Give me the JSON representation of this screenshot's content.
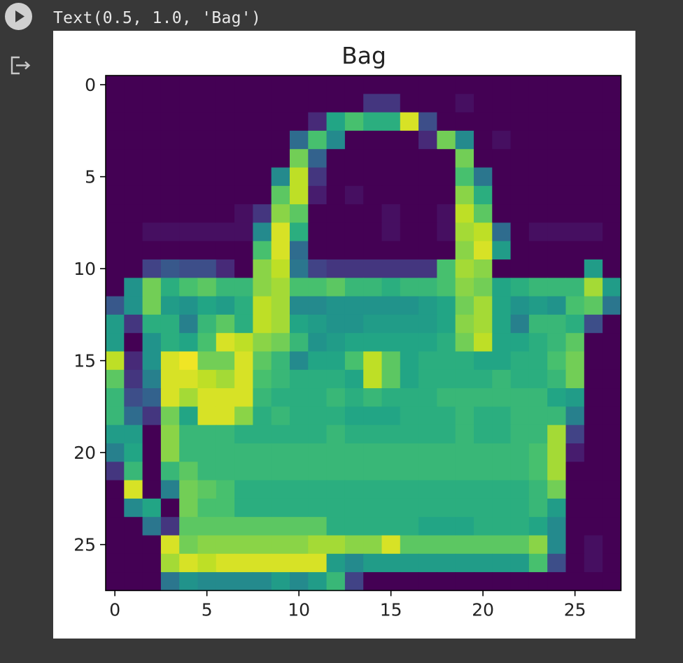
{
  "cell": {
    "output_text": "Text(0.5, 1.0, 'Bag')",
    "run_icon": "play-icon",
    "output_icon": "output-exit-icon"
  },
  "chart_data": {
    "type": "heatmap",
    "title": "Bag",
    "colormap": "viridis",
    "value_range": [
      0,
      255
    ],
    "x_ticks": [
      "0",
      "5",
      "10",
      "15",
      "20",
      "25"
    ],
    "y_ticks": [
      "0",
      "5",
      "10",
      "15",
      "20",
      "25"
    ],
    "rows": 28,
    "cols": 28,
    "values": [
      [
        0,
        0,
        0,
        0,
        0,
        0,
        0,
        0,
        0,
        0,
        0,
        0,
        0,
        0,
        0,
        0,
        0,
        0,
        0,
        0,
        0,
        0,
        0,
        0,
        0,
        0,
        0,
        0
      ],
      [
        0,
        0,
        0,
        0,
        0,
        0,
        0,
        0,
        0,
        0,
        0,
        0,
        0,
        0,
        40,
        40,
        0,
        0,
        0,
        10,
        0,
        0,
        0,
        0,
        0,
        0,
        0,
        0
      ],
      [
        0,
        0,
        0,
        0,
        0,
        0,
        0,
        0,
        0,
        0,
        0,
        30,
        150,
        180,
        160,
        160,
        240,
        60,
        0,
        0,
        0,
        0,
        0,
        0,
        0,
        0,
        0,
        0
      ],
      [
        0,
        0,
        0,
        0,
        0,
        0,
        0,
        0,
        0,
        0,
        90,
        180,
        120,
        0,
        0,
        0,
        0,
        30,
        200,
        120,
        0,
        10,
        0,
        0,
        0,
        0,
        0,
        0
      ],
      [
        0,
        0,
        0,
        0,
        0,
        0,
        0,
        0,
        0,
        0,
        200,
        80,
        0,
        0,
        0,
        0,
        0,
        0,
        0,
        200,
        0,
        0,
        0,
        0,
        0,
        0,
        0,
        0
      ],
      [
        0,
        0,
        0,
        0,
        0,
        0,
        0,
        0,
        0,
        120,
        230,
        40,
        0,
        0,
        0,
        0,
        0,
        0,
        0,
        180,
        100,
        0,
        0,
        0,
        0,
        0,
        0,
        0
      ],
      [
        0,
        0,
        0,
        0,
        0,
        0,
        0,
        0,
        0,
        190,
        230,
        20,
        0,
        10,
        0,
        0,
        0,
        0,
        0,
        210,
        160,
        0,
        0,
        0,
        0,
        0,
        0,
        0
      ],
      [
        0,
        0,
        0,
        0,
        0,
        0,
        0,
        10,
        40,
        210,
        190,
        0,
        0,
        0,
        0,
        10,
        0,
        0,
        10,
        230,
        190,
        0,
        0,
        0,
        0,
        0,
        0,
        0
      ],
      [
        0,
        0,
        10,
        10,
        10,
        10,
        10,
        10,
        120,
        240,
        160,
        0,
        0,
        0,
        0,
        10,
        0,
        0,
        10,
        220,
        230,
        90,
        0,
        10,
        10,
        10,
        10,
        0
      ],
      [
        0,
        0,
        0,
        0,
        0,
        0,
        0,
        0,
        180,
        240,
        90,
        0,
        0,
        0,
        0,
        0,
        0,
        0,
        0,
        210,
        240,
        140,
        0,
        0,
        0,
        0,
        0,
        0
      ],
      [
        0,
        0,
        50,
        70,
        60,
        60,
        30,
        0,
        210,
        230,
        100,
        50,
        40,
        40,
        40,
        40,
        40,
        40,
        180,
        220,
        210,
        0,
        0,
        0,
        0,
        0,
        140,
        0
      ],
      [
        0,
        130,
        200,
        160,
        180,
        190,
        170,
        170,
        210,
        220,
        180,
        180,
        190,
        170,
        170,
        160,
        170,
        170,
        180,
        210,
        200,
        150,
        160,
        170,
        170,
        170,
        220,
        140
      ],
      [
        70,
        130,
        200,
        140,
        130,
        150,
        140,
        160,
        230,
        220,
        120,
        120,
        130,
        130,
        130,
        130,
        130,
        140,
        150,
        200,
        220,
        150,
        130,
        140,
        130,
        180,
        190,
        100
      ],
      [
        140,
        40,
        160,
        160,
        110,
        170,
        190,
        160,
        230,
        220,
        150,
        140,
        130,
        130,
        140,
        140,
        140,
        140,
        150,
        210,
        220,
        150,
        110,
        170,
        170,
        160,
        60,
        0
      ],
      [
        140,
        0,
        130,
        160,
        150,
        180,
        240,
        230,
        210,
        200,
        170,
        130,
        140,
        150,
        150,
        150,
        150,
        150,
        160,
        200,
        230,
        150,
        150,
        160,
        170,
        190,
        0,
        0
      ],
      [
        230,
        30,
        130,
        240,
        250,
        200,
        200,
        240,
        190,
        170,
        120,
        150,
        150,
        180,
        230,
        190,
        150,
        160,
        160,
        160,
        150,
        150,
        160,
        160,
        180,
        200,
        0,
        0
      ],
      [
        190,
        40,
        110,
        240,
        240,
        230,
        220,
        240,
        180,
        170,
        160,
        160,
        160,
        150,
        230,
        190,
        150,
        160,
        160,
        160,
        160,
        170,
        160,
        160,
        170,
        200,
        0,
        0
      ],
      [
        170,
        60,
        80,
        240,
        220,
        240,
        240,
        240,
        170,
        160,
        160,
        160,
        170,
        160,
        170,
        160,
        160,
        160,
        170,
        170,
        170,
        170,
        170,
        170,
        150,
        140,
        0,
        0
      ],
      [
        170,
        90,
        40,
        200,
        150,
        240,
        240,
        210,
        160,
        170,
        160,
        160,
        160,
        150,
        150,
        150,
        160,
        160,
        160,
        170,
        160,
        160,
        170,
        170,
        170,
        110,
        0,
        0
      ],
      [
        140,
        140,
        0,
        210,
        170,
        170,
        170,
        160,
        160,
        160,
        160,
        160,
        170,
        160,
        160,
        160,
        160,
        160,
        160,
        170,
        160,
        160,
        170,
        170,
        220,
        50,
        0,
        0
      ],
      [
        110,
        150,
        0,
        210,
        170,
        170,
        170,
        170,
        170,
        170,
        170,
        170,
        170,
        170,
        170,
        170,
        170,
        170,
        170,
        170,
        170,
        170,
        170,
        180,
        220,
        20,
        0,
        0
      ],
      [
        40,
        170,
        0,
        170,
        190,
        170,
        170,
        170,
        170,
        170,
        170,
        170,
        170,
        170,
        170,
        170,
        170,
        170,
        170,
        170,
        170,
        170,
        170,
        180,
        220,
        0,
        0,
        0
      ],
      [
        0,
        240,
        0,
        110,
        200,
        190,
        180,
        160,
        160,
        160,
        160,
        160,
        160,
        160,
        160,
        160,
        160,
        160,
        160,
        160,
        160,
        160,
        160,
        170,
        200,
        0,
        0,
        0
      ],
      [
        0,
        120,
        150,
        0,
        200,
        180,
        180,
        160,
        160,
        160,
        160,
        160,
        160,
        160,
        160,
        160,
        160,
        160,
        160,
        160,
        160,
        160,
        160,
        170,
        140,
        0,
        0,
        0
      ],
      [
        0,
        0,
        100,
        40,
        190,
        190,
        190,
        190,
        190,
        190,
        190,
        190,
        160,
        160,
        160,
        160,
        160,
        150,
        150,
        150,
        160,
        160,
        160,
        150,
        120,
        0,
        0,
        0
      ],
      [
        0,
        0,
        0,
        240,
        200,
        210,
        210,
        210,
        210,
        210,
        210,
        220,
        220,
        210,
        210,
        240,
        190,
        190,
        190,
        190,
        190,
        190,
        190,
        210,
        120,
        0,
        10,
        0
      ],
      [
        0,
        0,
        0,
        220,
        240,
        230,
        240,
        240,
        240,
        240,
        240,
        240,
        140,
        120,
        140,
        140,
        140,
        140,
        140,
        140,
        140,
        140,
        140,
        180,
        60,
        0,
        10,
        0
      ],
      [
        0,
        0,
        0,
        100,
        130,
        120,
        120,
        120,
        120,
        140,
        120,
        140,
        170,
        50,
        0,
        0,
        0,
        0,
        0,
        0,
        0,
        0,
        0,
        0,
        0,
        0,
        0,
        0
      ]
    ]
  }
}
